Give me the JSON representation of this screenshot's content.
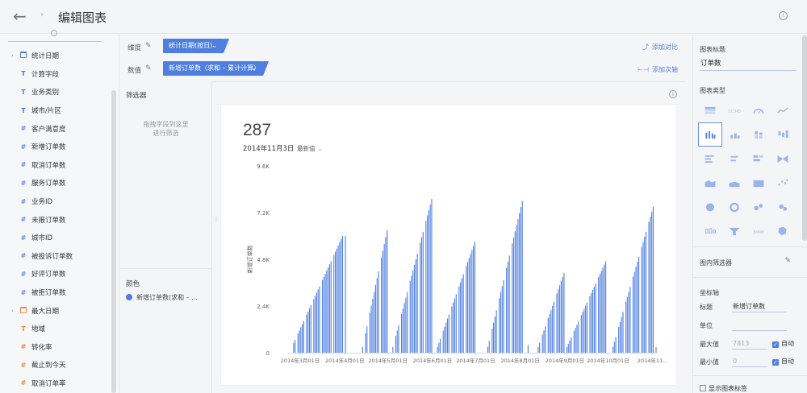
{
  "header": {
    "back_icon": "←",
    "separator_icon": "›",
    "title": "编辑图表",
    "info_icon": "i"
  },
  "sidebar": {
    "fields": [
      {
        "label": "统计日期",
        "type": "date",
        "color": "blue",
        "expandable": true
      },
      {
        "label": "计算字段",
        "type": "text",
        "color": "blue"
      },
      {
        "label": "业务类别",
        "type": "text",
        "color": "blue"
      },
      {
        "label": "城市/片区",
        "type": "text",
        "color": "blue"
      },
      {
        "label": "客户满意度",
        "type": "number",
        "color": "blue"
      },
      {
        "label": "新增订单数",
        "type": "number",
        "color": "blue"
      },
      {
        "label": "取消订单数",
        "type": "number",
        "color": "blue"
      },
      {
        "label": "服务订单数",
        "type": "number",
        "color": "blue"
      },
      {
        "label": "业务ID",
        "type": "number",
        "color": "blue"
      },
      {
        "label": "未报订单数",
        "type": "number",
        "color": "blue"
      },
      {
        "label": "城市ID",
        "type": "number",
        "color": "blue"
      },
      {
        "label": "被投诉订单数",
        "type": "number",
        "color": "blue"
      },
      {
        "label": "好评订单数",
        "type": "number",
        "color": "blue"
      },
      {
        "label": "被拒订单数",
        "type": "number",
        "color": "blue"
      },
      {
        "label": "最大日期",
        "type": "date",
        "color": "orange",
        "expandable": true
      },
      {
        "label": "地域",
        "type": "text",
        "color": "orange"
      },
      {
        "label": "转化率",
        "type": "number",
        "color": "orange"
      },
      {
        "label": "截止到今天",
        "type": "number",
        "color": "orange"
      },
      {
        "label": "取消订单率",
        "type": "number",
        "color": "orange"
      }
    ]
  },
  "toolbar": {
    "dimension_label": "维度",
    "dimension_pill": "统计日期(按日)",
    "add_compare": "添加对比",
    "value_label": "数值",
    "value_pill": "新增订单数（求和 – 累计计算）",
    "add_secondary_axis": "添加次轴"
  },
  "filter": {
    "title": "筛选器",
    "hint_line1": "拖拽字段到这里",
    "hint_line2": "进行筛选"
  },
  "color_section": {
    "title": "颜色",
    "item": "新增订单数(求和 – ..."
  },
  "card": {
    "big_number": "287",
    "date": "2014年11月3日",
    "latest": "最新值"
  },
  "chart_data": {
    "type": "bar",
    "ylabel": "新增订单数",
    "yticks": [
      "0",
      "2.4K",
      "4.8K",
      "7.2K",
      "9.6K"
    ],
    "ylim": [
      0,
      9600
    ],
    "xticks": [
      "2014年3月01日",
      "2014年4月01日",
      "2014年5月01日",
      "2014年6月01日",
      "2014年7月01日",
      "2014年8月01日",
      "2014年9月01日",
      "2014年10月01日",
      "2014年11..."
    ],
    "color": "#4e7fe0",
    "x_range": [
      "2014-02-20",
      "2014-11-03"
    ],
    "segments": [
      {
        "start": "2014-02-24",
        "end": "2014-03-30",
        "from": 500,
        "to": 6000,
        "missing_days": [
          2,
          8,
          13,
          19,
          27
        ]
      },
      {
        "start": "2014-04-01",
        "end": "2014-04-01",
        "from": 6000,
        "to": 6000,
        "missing_days": []
      },
      {
        "start": "2014-04-13",
        "end": "2014-04-30",
        "from": 300,
        "to": 6300,
        "missing_days": [
          1,
          4,
          12
        ]
      },
      {
        "start": "2014-05-04",
        "end": "2014-05-31",
        "from": 300,
        "to": 7900,
        "missing_days": [
          1,
          5,
          11,
          18,
          22
        ]
      },
      {
        "start": "2014-06-04",
        "end": "2014-06-30",
        "from": 300,
        "to": 5700,
        "missing_days": [
          3,
          9,
          14,
          19
        ]
      },
      {
        "start": "2014-07-09",
        "end": "2014-08-02",
        "from": 300,
        "to": 7800,
        "missing_days": [
          2,
          7,
          12,
          16
        ]
      },
      {
        "start": "2014-08-06",
        "end": "2014-08-06",
        "from": 400,
        "to": 400,
        "missing_days": []
      },
      {
        "start": "2014-08-13",
        "end": "2014-08-31",
        "from": 300,
        "to": 4100,
        "missing_days": [
          2,
          6,
          12
        ]
      },
      {
        "start": "2014-09-02",
        "end": "2014-09-29",
        "from": 300,
        "to": 4700,
        "missing_days": [
          4,
          9,
          15,
          21
        ]
      },
      {
        "start": "2014-10-04",
        "end": "2014-11-01",
        "from": 300,
        "to": 7500,
        "missing_days": [
          3,
          8,
          13,
          19,
          24
        ]
      },
      {
        "start": "2014-11-03",
        "end": "2014-11-03",
        "from": 287,
        "to": 287,
        "missing_days": []
      }
    ]
  },
  "right_panel": {
    "chart_title_label": "图表标题",
    "chart_title_value": "订单数",
    "chart_type_label": "图表类型",
    "chart_types": [
      "table",
      "kpi",
      "gauge",
      "line",
      "column",
      "column-small",
      "stacked-column",
      "column-diverging",
      "bar",
      "bar-small",
      "stacked-bar",
      "bowtie",
      "area",
      "area-flat",
      "area-block",
      "scatter",
      "pie",
      "donut",
      "bubble",
      "bubble-alt",
      "boxplot",
      "funnel",
      "solar",
      "map"
    ],
    "chart_types_selected": "column",
    "inner_filter_label": "图内筛选器",
    "axis_section_label": "坐标轴",
    "axis_title_label": "标题",
    "axis_title_value": "新增订单数",
    "axis_unit_label": "单位",
    "axis_max_label": "最大值",
    "axis_max_value": "7813",
    "axis_min_label": "最小值",
    "axis_min_value": "0",
    "auto_label": "自动",
    "show_chart_label": "显示图表标签"
  }
}
